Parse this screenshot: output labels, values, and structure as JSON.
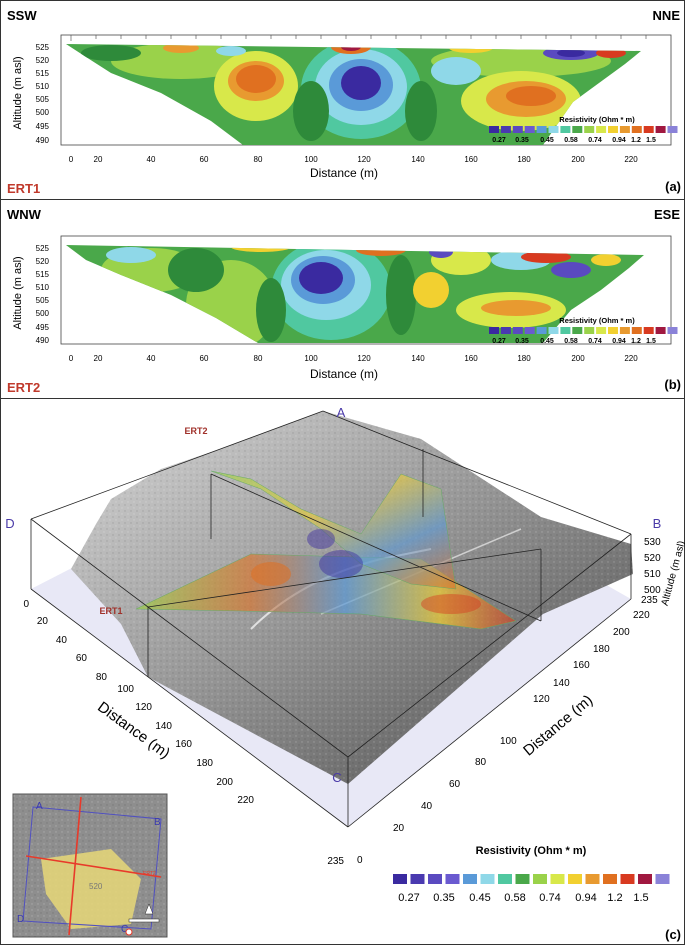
{
  "panel_a": {
    "dir_left": "SSW",
    "dir_right": "NNE",
    "ylabel": "Altitude (m asl)",
    "xlabel": "Distance (m)",
    "yticks": [
      "525",
      "520",
      "515",
      "510",
      "505",
      "500",
      "495",
      "490"
    ],
    "xticks": [
      "0",
      "20",
      "40",
      "60",
      "80",
      "100",
      "120",
      "140",
      "160",
      "180",
      "200",
      "220"
    ],
    "name": "ERT1",
    "tag": "(a)",
    "legend_title": "Resistivity (Ohm * m)"
  },
  "panel_b": {
    "dir_left": "WNW",
    "dir_right": "ESE",
    "ylabel": "Altitude (m asl)",
    "xlabel": "Distance (m)",
    "yticks": [
      "525",
      "520",
      "515",
      "510",
      "505",
      "500",
      "495",
      "490"
    ],
    "xticks": [
      "0",
      "20",
      "40",
      "60",
      "80",
      "100",
      "120",
      "140",
      "160",
      "180",
      "200",
      "220"
    ],
    "name": "ERT2",
    "tag": "(b)",
    "legend_title": "Resistivity (Ohm * m)"
  },
  "legend_small_labels": [
    "0.27",
    "0.35",
    "0.45",
    "0.58",
    "0.74",
    "0.94",
    "1.2",
    "1.5"
  ],
  "legend_colors": [
    "#3a2aa0",
    "#4a3ab0",
    "#5a4ac0",
    "#6a5ad0",
    "#5a9ad8",
    "#8fd8e8",
    "#50c8a0",
    "#4aa84a",
    "#9ad24a",
    "#d8e84a",
    "#f2d030",
    "#e89a30",
    "#e07020",
    "#d83a20",
    "#a01840",
    "#8a82d8"
  ],
  "panel_c": {
    "corner_a": "A",
    "corner_b": "B",
    "corner_c": "C",
    "corner_d": "D",
    "ert1": "ERT1",
    "ert2": "ERT2",
    "left_axis_title": "Distance (m)",
    "right_axis_title": "Distance (m)",
    "alt_title": "Altitude (m asl)",
    "left_ticks": [
      "0",
      "20",
      "40",
      "60",
      "80",
      "100",
      "120",
      "140",
      "160",
      "180",
      "200",
      "220",
      "235"
    ],
    "right_ticks": [
      "0",
      "20",
      "40",
      "60",
      "80",
      "100",
      "120",
      "140",
      "160",
      "180",
      "200",
      "220",
      "235"
    ],
    "alt_ticks": [
      "530",
      "520",
      "510",
      "500"
    ],
    "legend_title": "Resistivity (Ohm * m)",
    "legend_labels": [
      "0.27",
      "0.35",
      "0.45",
      "0.58",
      "0.74",
      "0.94",
      "1.2",
      "1.5"
    ],
    "tag": "(c)",
    "inset": {
      "a": "A",
      "b": "B",
      "c": "C",
      "d": "D",
      "ert2_label": "ERT2",
      "contour_label": "520"
    }
  }
}
